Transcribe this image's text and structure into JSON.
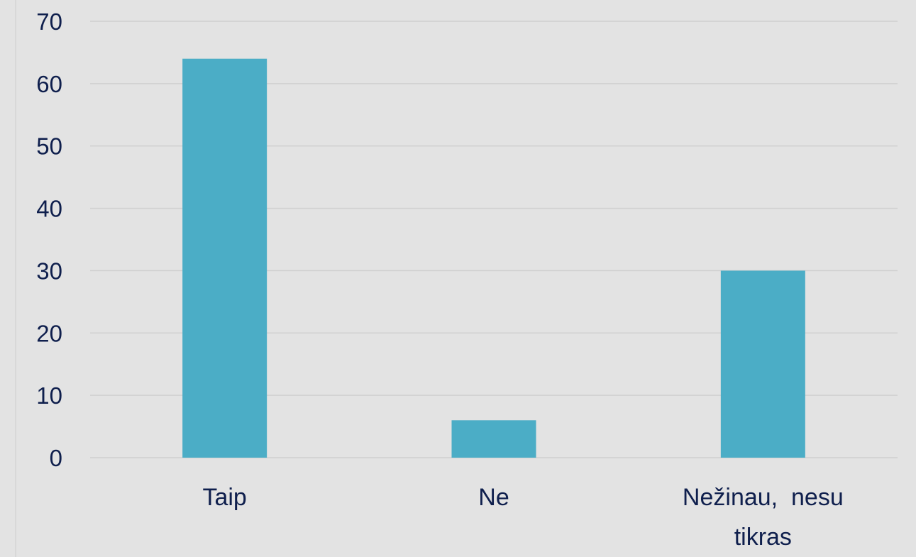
{
  "chart_data": {
    "type": "bar",
    "title": "",
    "xlabel": "",
    "ylabel": "",
    "categories": [
      "Taip",
      "Ne",
      "Nežinau,  nesu tikras"
    ],
    "category_lines": [
      [
        "Taip"
      ],
      [
        "Ne"
      ],
      [
        "Nežinau,  nesu",
        "tikras"
      ]
    ],
    "values": [
      64,
      6,
      30
    ],
    "ylim": [
      0,
      70
    ],
    "yticks": [
      0,
      10,
      20,
      30,
      40,
      50,
      60,
      70
    ],
    "grid": true,
    "legend": "none",
    "bar_color": "#4badc6",
    "text_color": "#0f1f4d",
    "background_color": "#e3e3e3"
  }
}
